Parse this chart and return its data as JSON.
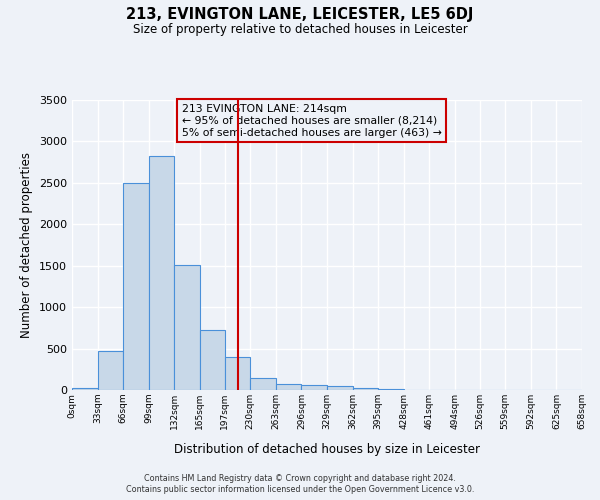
{
  "title": "213, EVINGTON LANE, LEICESTER, LE5 6DJ",
  "subtitle": "Size of property relative to detached houses in Leicester",
  "xlabel": "Distribution of detached houses by size in Leicester",
  "ylabel": "Number of detached properties",
  "bar_left_edges": [
    0,
    33,
    66,
    99,
    132,
    165,
    197,
    230,
    263,
    296,
    329,
    362,
    395,
    428,
    461,
    494,
    526,
    559,
    592,
    625
  ],
  "bar_widths": [
    33,
    33,
    33,
    33,
    33,
    32,
    33,
    33,
    33,
    33,
    33,
    33,
    33,
    33,
    33,
    32,
    33,
    33,
    33,
    33
  ],
  "bar_heights": [
    20,
    470,
    2500,
    2820,
    1510,
    720,
    400,
    150,
    75,
    55,
    45,
    30,
    15,
    0,
    0,
    0,
    0,
    0,
    0,
    0
  ],
  "tick_labels": [
    "0sqm",
    "33sqm",
    "66sqm",
    "99sqm",
    "132sqm",
    "165sqm",
    "197sqm",
    "230sqm",
    "263sqm",
    "296sqm",
    "329sqm",
    "362sqm",
    "395sqm",
    "428sqm",
    "461sqm",
    "494sqm",
    "526sqm",
    "559sqm",
    "592sqm",
    "625sqm",
    "658sqm"
  ],
  "bar_color": "#c8d8e8",
  "bar_edge_color": "#4a90d9",
  "bar_edge_width": 0.8,
  "vline_x": 214,
  "vline_color": "#cc0000",
  "ylim": [
    0,
    3500
  ],
  "yticks": [
    0,
    500,
    1000,
    1500,
    2000,
    2500,
    3000,
    3500
  ],
  "background_color": "#eef2f8",
  "grid_color": "#ffffff",
  "annotation_title": "213 EVINGTON LANE: 214sqm",
  "annotation_line1": "← 95% of detached houses are smaller (8,214)",
  "annotation_line2": "5% of semi-detached houses are larger (463) →",
  "annotation_box_edge_color": "#cc0000",
  "footer_line1": "Contains HM Land Registry data © Crown copyright and database right 2024.",
  "footer_line2": "Contains public sector information licensed under the Open Government Licence v3.0."
}
